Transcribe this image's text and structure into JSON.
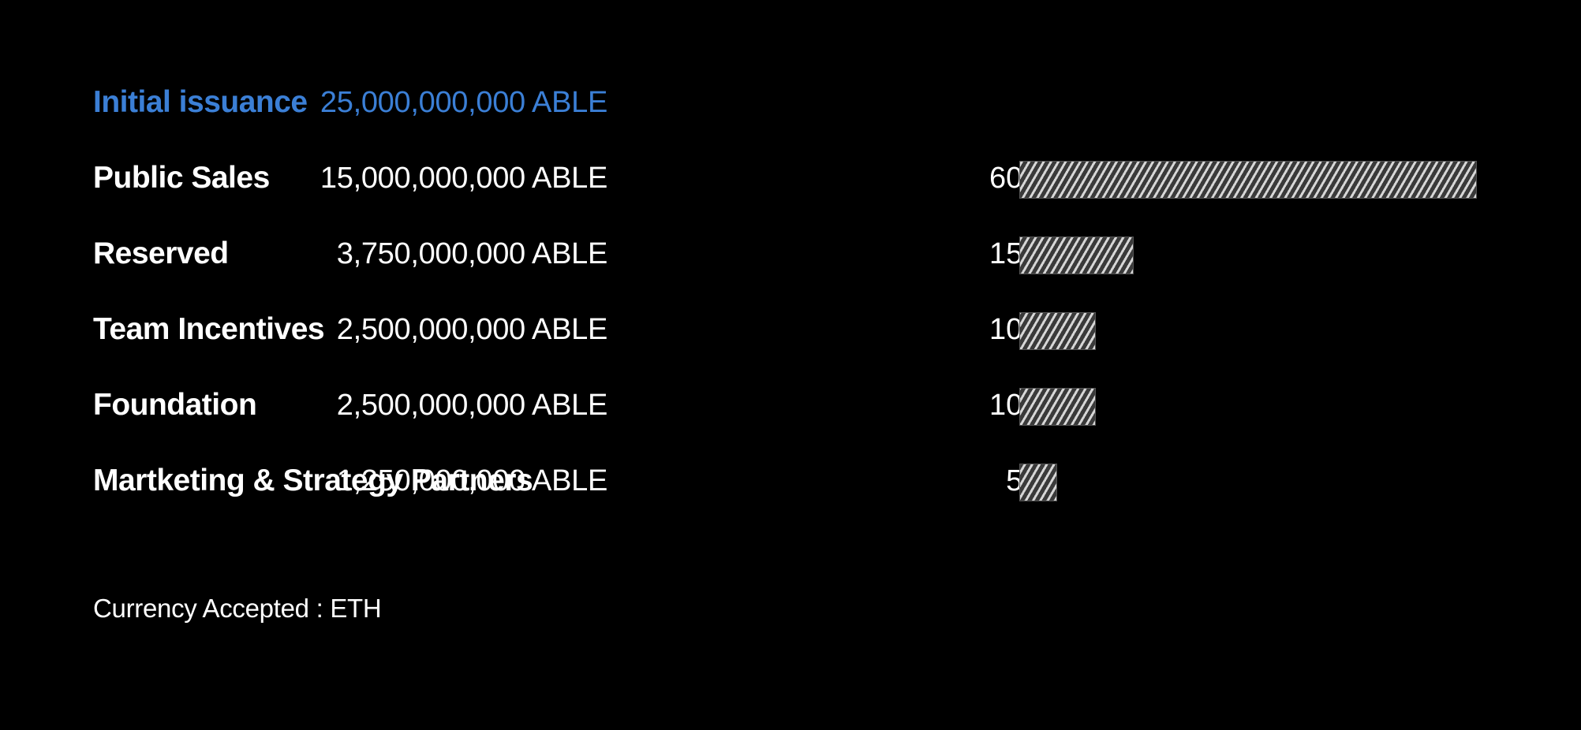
{
  "header": {
    "label": "Initial issuance",
    "amount": "25,000,000,000 ABLE"
  },
  "accent_color": "#3b7fd6",
  "chart_data": {
    "type": "bar",
    "title": "",
    "xlabel": "",
    "ylabel": "",
    "categories": [
      "Public Sales",
      "Reserved",
      "Team Incentives",
      "Foundation",
      "Martketing & Strategy Partners"
    ],
    "amounts": [
      "15,000,000,000 ABLE",
      "3,750,000,000 ABLE",
      "2,500,000,000 ABLE",
      "2,500,000,000 ABLE",
      "1,250,000,000 ABLE"
    ],
    "percent_labels": [
      "60%",
      "15%",
      "10%",
      "10%",
      "5%"
    ],
    "values": [
      60,
      15,
      10,
      10,
      5
    ],
    "xlim": [
      0,
      60
    ],
    "grid": false,
    "bar_fill": "hatched-gray"
  },
  "footer": {
    "currency_text": "Currency Accepted : ETH"
  }
}
